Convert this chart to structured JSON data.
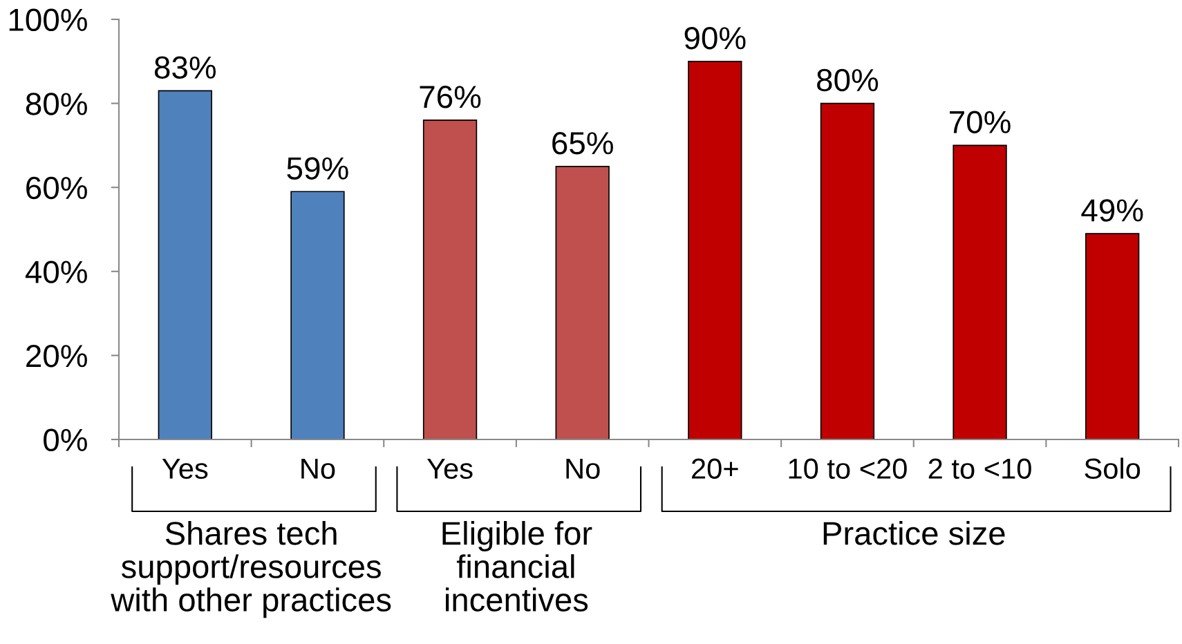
{
  "chart_data": {
    "type": "bar",
    "categories": [
      "Yes",
      "No",
      "Yes",
      "No",
      "20+",
      "10 to <20",
      "2 to <10",
      "Solo"
    ],
    "values": [
      83,
      59,
      76,
      65,
      90,
      80,
      70,
      49
    ],
    "colors": [
      "#4f81bd",
      "#4f81bd",
      "#c0504d",
      "#c0504d",
      "#c00000",
      "#c00000",
      "#c00000",
      "#c00000"
    ],
    "value_labels": [
      "83%",
      "59%",
      "76%",
      "65%",
      "90%",
      "80%",
      "70%",
      "49%"
    ],
    "ylim": [
      0,
      100
    ],
    "yticks": [
      {
        "value": 0,
        "label": "0%"
      },
      {
        "value": 20,
        "label": "20%"
      },
      {
        "value": 40,
        "label": "40%"
      },
      {
        "value": 60,
        "label": "60%"
      },
      {
        "value": 80,
        "label": "80%"
      },
      {
        "value": 100,
        "label": "100%"
      }
    ],
    "annotations": [
      "Shares tech\nsupport/resources\nwith other practices",
      "Eligible for\nfinancial\nincentives",
      "Practice size"
    ],
    "grid": false
  }
}
